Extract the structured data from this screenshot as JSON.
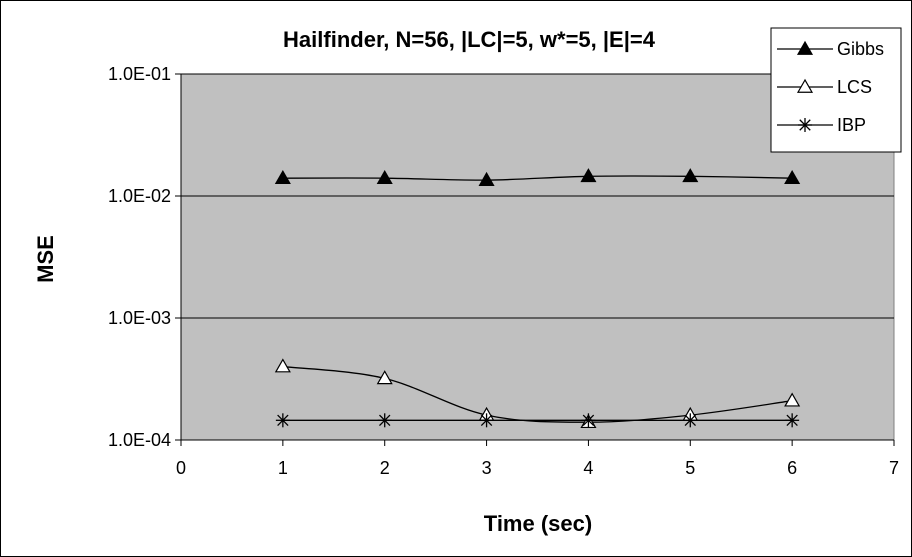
{
  "chart_data": {
    "type": "line",
    "title": "Hailfinder, N=56, |LC|=5, w*=5, |E|=4",
    "xlabel": "Time (sec)",
    "ylabel": "MSE",
    "x_scale": "linear",
    "y_scale": "log",
    "xlim": [
      0,
      7
    ],
    "ylim": [
      0.0001,
      0.1
    ],
    "x_ticks": [
      0,
      1,
      2,
      3,
      4,
      5,
      6,
      7
    ],
    "x_tick_labels": [
      "0",
      "1",
      "2",
      "3",
      "4",
      "5",
      "6",
      "7"
    ],
    "y_ticks": [
      0.0001,
      0.001,
      0.01,
      0.1
    ],
    "y_tick_labels": [
      "1.0E-04",
      "1.0E-03",
      "1.0E-02",
      "1.0E-01"
    ],
    "grid": {
      "horizontal": true,
      "vertical": false
    },
    "plot_background": "#c0c0c0",
    "legend_position": "top-right",
    "x": [
      1,
      2,
      3,
      4,
      5,
      6
    ],
    "series": [
      {
        "name": "Gibbs",
        "marker": "filled-triangle",
        "color": "#000000",
        "values": [
          0.014,
          0.014,
          0.0135,
          0.0145,
          0.0145,
          0.014
        ]
      },
      {
        "name": "LCS",
        "marker": "open-triangle",
        "color": "#000000",
        "values": [
          0.0004,
          0.00032,
          0.00016,
          0.00014,
          0.00016,
          0.00021
        ]
      },
      {
        "name": "IBP",
        "marker": "asterisk",
        "color": "#000000",
        "values": [
          0.000145,
          0.000145,
          0.000145,
          0.000145,
          0.000145,
          0.000145
        ]
      }
    ]
  }
}
